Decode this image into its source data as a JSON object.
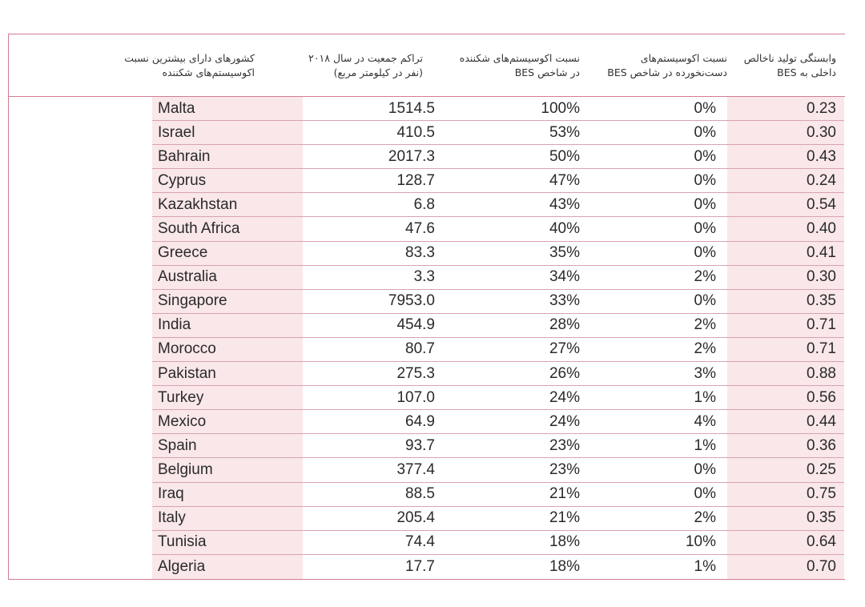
{
  "headers": {
    "country": "کشورهای دارای بیشترین نسبت اکوسیستم‌های شکننده",
    "population": "تراکم جمعیت در سال ۲۰۱۸ (نفر در کیلومتر مربع)",
    "fragile": "نسبت اکوسیستم‌های شکننده در شاخص BES",
    "intact": "نسبت اکوسیستم‌های دست‌نخورده در شاخص BES",
    "gdp": "وابستگی تولید ناخالص داخلی به BES"
  },
  "rows": [
    {
      "country": "Malta",
      "population": "1514.5",
      "fragile": "100%",
      "intact": "0%",
      "gdp": "0.23"
    },
    {
      "country": "Israel",
      "population": "410.5",
      "fragile": "53%",
      "intact": "0%",
      "gdp": "0.30"
    },
    {
      "country": "Bahrain",
      "population": "2017.3",
      "fragile": "50%",
      "intact": "0%",
      "gdp": "0.43"
    },
    {
      "country": "Cyprus",
      "population": "128.7",
      "fragile": "47%",
      "intact": "0%",
      "gdp": "0.24"
    },
    {
      "country": "Kazakhstan",
      "population": "6.8",
      "fragile": "43%",
      "intact": "0%",
      "gdp": "0.54"
    },
    {
      "country": "South Africa",
      "population": "47.6",
      "fragile": "40%",
      "intact": "0%",
      "gdp": "0.40"
    },
    {
      "country": "Greece",
      "population": "83.3",
      "fragile": "35%",
      "intact": "0%",
      "gdp": "0.41"
    },
    {
      "country": "Australia",
      "population": "3.3",
      "fragile": "34%",
      "intact": "2%",
      "gdp": "0.30"
    },
    {
      "country": "Singapore",
      "population": "7953.0",
      "fragile": "33%",
      "intact": "0%",
      "gdp": "0.35"
    },
    {
      "country": "India",
      "population": "454.9",
      "fragile": "28%",
      "intact": "2%",
      "gdp": "0.71"
    },
    {
      "country": "Morocco",
      "population": "80.7",
      "fragile": "27%",
      "intact": "2%",
      "gdp": "0.71"
    },
    {
      "country": "Pakistan",
      "population": "275.3",
      "fragile": "26%",
      "intact": "3%",
      "gdp": "0.88"
    },
    {
      "country": "Turkey",
      "population": "107.0",
      "fragile": "24%",
      "intact": "1%",
      "gdp": "0.56"
    },
    {
      "country": "Mexico",
      "population": "64.9",
      "fragile": "24%",
      "intact": "4%",
      "gdp": "0.44"
    },
    {
      "country": "Spain",
      "population": "93.7",
      "fragile": "23%",
      "intact": "1%",
      "gdp": "0.36"
    },
    {
      "country": "Belgium",
      "population": "377.4",
      "fragile": "23%",
      "intact": "0%",
      "gdp": "0.25"
    },
    {
      "country": "Iraq",
      "population": "88.5",
      "fragile": "21%",
      "intact": "0%",
      "gdp": "0.75"
    },
    {
      "country": "Italy",
      "population": "205.4",
      "fragile": "21%",
      "intact": "2%",
      "gdp": "0.35"
    },
    {
      "country": "Tunisia",
      "population": "74.4",
      "fragile": "18%",
      "intact": "10%",
      "gdp": "0.64"
    },
    {
      "country": "Algeria",
      "population": "17.7",
      "fragile": "18%",
      "intact": "1%",
      "gdp": "0.70"
    }
  ]
}
